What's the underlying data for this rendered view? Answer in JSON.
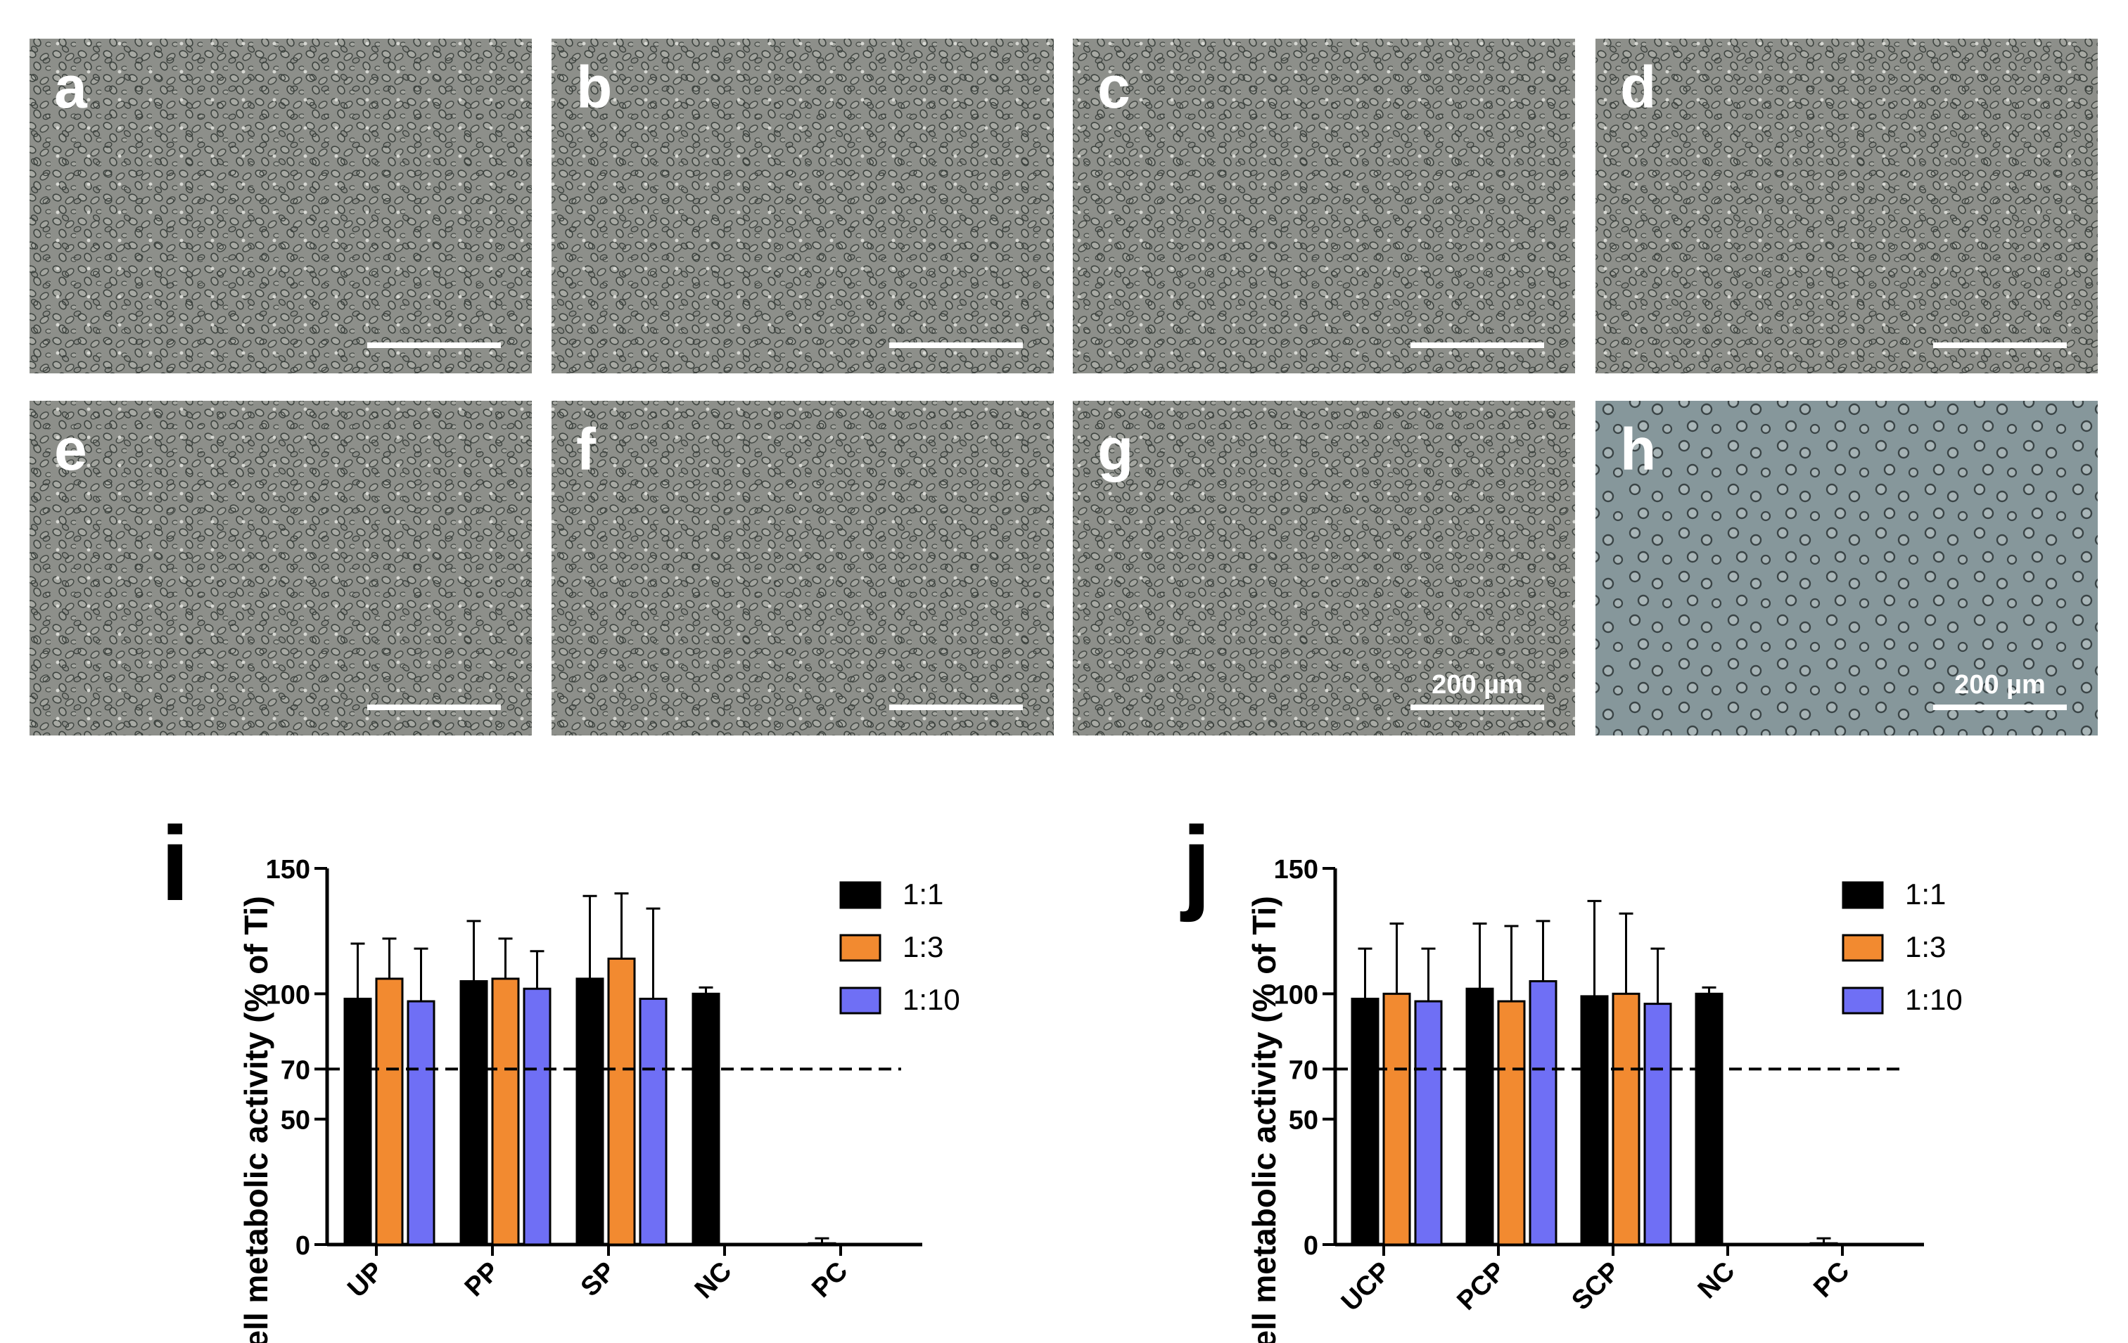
{
  "micrographs": [
    {
      "letter": "a",
      "scalebar_label": "",
      "style": "dense"
    },
    {
      "letter": "b",
      "scalebar_label": "",
      "style": "dense"
    },
    {
      "letter": "c",
      "scalebar_label": "",
      "style": "dense"
    },
    {
      "letter": "d",
      "scalebar_label": "",
      "style": "dense"
    },
    {
      "letter": "e",
      "scalebar_label": "",
      "style": "dense"
    },
    {
      "letter": "f",
      "scalebar_label": "",
      "style": "dense"
    },
    {
      "letter": "g",
      "scalebar_label": "200 µm",
      "style": "dense"
    },
    {
      "letter": "h",
      "scalebar_label": "200 µm",
      "style": "sparse-round"
    }
  ],
  "colors": {
    "series_1_1": "#000000",
    "series_1_3": "#f28a30",
    "series_1_10": "#6f6ff5",
    "micrograph_bg": "#8a8c87",
    "micrograph_bg_h": "#86979b",
    "cell_outline": "#3e4440",
    "text": "#000000",
    "letter_white": "#ffffff"
  },
  "chart_data": [
    {
      "panel": "i",
      "type": "bar",
      "ylabel": "Cell metabolic activity (% of Ti)",
      "ylim": [
        0,
        150
      ],
      "yticks": [
        0,
        50,
        70,
        100,
        150
      ],
      "reference_line": 70,
      "categories": [
        "UP",
        "PP",
        "SP",
        "NC",
        "PC"
      ],
      "series": [
        {
          "name": "1:1",
          "values": [
            98,
            105,
            106,
            100,
            0.5
          ],
          "errors": [
            22,
            24,
            33,
            2.5,
            2
          ]
        },
        {
          "name": "1:3",
          "values": [
            106,
            106,
            114,
            null,
            null
          ],
          "errors": [
            16,
            16,
            26,
            null,
            null
          ]
        },
        {
          "name": "1:10",
          "values": [
            97,
            102,
            98,
            null,
            null
          ],
          "errors": [
            21,
            15,
            36,
            null,
            null
          ]
        }
      ],
      "legend_position": "top-right"
    },
    {
      "panel": "j",
      "type": "bar",
      "ylabel": "Cell metabolic activity (% of Ti)",
      "ylim": [
        0,
        150
      ],
      "yticks": [
        0,
        50,
        70,
        100,
        150
      ],
      "reference_line": 70,
      "categories": [
        "UCP",
        "PCP",
        "SCP",
        "NC",
        "PC"
      ],
      "series": [
        {
          "name": "1:1",
          "values": [
            98,
            102,
            99,
            100,
            0.5
          ],
          "errors": [
            20,
            26,
            38,
            2.5,
            2
          ]
        },
        {
          "name": "1:3",
          "values": [
            100,
            97,
            100,
            null,
            null
          ],
          "errors": [
            28,
            30,
            32,
            null,
            null
          ]
        },
        {
          "name": "1:10",
          "values": [
            97,
            105,
            96,
            null,
            null
          ],
          "errors": [
            21,
            24,
            22,
            null,
            null
          ]
        }
      ],
      "legend_position": "top-right"
    }
  ]
}
